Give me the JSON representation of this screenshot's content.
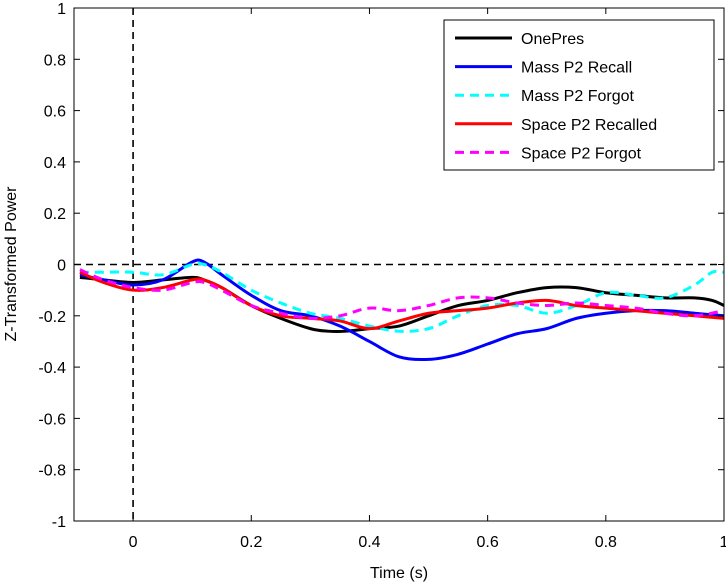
{
  "chart_data": {
    "type": "line",
    "title": "",
    "xlabel": "Time (s)",
    "ylabel": "Z-Transformed Power",
    "xlim": [
      -0.1,
      1.0
    ],
    "ylim": [
      -1,
      1
    ],
    "xticks": [
      0,
      0.2,
      0.4,
      0.6,
      0.8,
      1
    ],
    "xtick_labels": [
      "0",
      "0.2",
      "0.4",
      "0.6",
      "0.8",
      "1"
    ],
    "yticks": [
      -1,
      -0.8,
      -0.6,
      -0.4,
      -0.2,
      0,
      0.2,
      0.4,
      0.6,
      0.8,
      1
    ],
    "ytick_labels": [
      "-1",
      "-0.8",
      "-0.6",
      "-0.4",
      "-0.2",
      "0",
      "0.2",
      "0.4",
      "0.6",
      "0.8",
      "1"
    ],
    "grid": false,
    "legend_position": "top-right",
    "reference_lines": [
      {
        "axis": "y",
        "value": 0,
        "style": "dashed",
        "color": "#000000"
      },
      {
        "axis": "x",
        "value": 0,
        "style": "dashed",
        "color": "#000000"
      }
    ],
    "series": [
      {
        "name": "OnePres",
        "color": "#000000",
        "dash": "solid",
        "points": [
          [
            -0.09,
            -0.05
          ],
          [
            -0.05,
            -0.06
          ],
          [
            0.0,
            -0.07
          ],
          [
            0.05,
            -0.06
          ],
          [
            0.1,
            -0.05
          ],
          [
            0.12,
            -0.06
          ],
          [
            0.15,
            -0.09
          ],
          [
            0.2,
            -0.16
          ],
          [
            0.25,
            -0.21
          ],
          [
            0.3,
            -0.25
          ],
          [
            0.33,
            -0.26
          ],
          [
            0.36,
            -0.26
          ],
          [
            0.4,
            -0.25
          ],
          [
            0.45,
            -0.24
          ],
          [
            0.5,
            -0.2
          ],
          [
            0.55,
            -0.16
          ],
          [
            0.6,
            -0.14
          ],
          [
            0.65,
            -0.11
          ],
          [
            0.7,
            -0.09
          ],
          [
            0.75,
            -0.09
          ],
          [
            0.8,
            -0.11
          ],
          [
            0.85,
            -0.12
          ],
          [
            0.9,
            -0.13
          ],
          [
            0.95,
            -0.13
          ],
          [
            0.98,
            -0.14
          ],
          [
            1.0,
            -0.16
          ]
        ]
      },
      {
        "name": "Mass P2 Recall",
        "color": "#0000ff",
        "dash": "solid",
        "points": [
          [
            -0.09,
            -0.04
          ],
          [
            -0.05,
            -0.06
          ],
          [
            0.0,
            -0.08
          ],
          [
            0.05,
            -0.06
          ],
          [
            0.1,
            0.01
          ],
          [
            0.12,
            0.01
          ],
          [
            0.15,
            -0.04
          ],
          [
            0.2,
            -0.12
          ],
          [
            0.25,
            -0.18
          ],
          [
            0.3,
            -0.2
          ],
          [
            0.35,
            -0.24
          ],
          [
            0.4,
            -0.3
          ],
          [
            0.45,
            -0.36
          ],
          [
            0.5,
            -0.37
          ],
          [
            0.55,
            -0.35
          ],
          [
            0.6,
            -0.31
          ],
          [
            0.65,
            -0.27
          ],
          [
            0.7,
            -0.25
          ],
          [
            0.75,
            -0.21
          ],
          [
            0.8,
            -0.19
          ],
          [
            0.85,
            -0.18
          ],
          [
            0.9,
            -0.18
          ],
          [
            0.95,
            -0.19
          ],
          [
            1.0,
            -0.2
          ]
        ]
      },
      {
        "name": "Mass P2 Forgot",
        "color": "#00ffff",
        "dash": "dashed",
        "points": [
          [
            -0.09,
            -0.03
          ],
          [
            -0.05,
            -0.03
          ],
          [
            0.0,
            -0.03
          ],
          [
            0.05,
            -0.04
          ],
          [
            0.1,
            0.0
          ],
          [
            0.12,
            0.0
          ],
          [
            0.15,
            -0.03
          ],
          [
            0.2,
            -0.1
          ],
          [
            0.25,
            -0.15
          ],
          [
            0.3,
            -0.19
          ],
          [
            0.35,
            -0.21
          ],
          [
            0.4,
            -0.24
          ],
          [
            0.45,
            -0.26
          ],
          [
            0.5,
            -0.25
          ],
          [
            0.55,
            -0.2
          ],
          [
            0.6,
            -0.16
          ],
          [
            0.65,
            -0.16
          ],
          [
            0.7,
            -0.19
          ],
          [
            0.75,
            -0.16
          ],
          [
            0.8,
            -0.11
          ],
          [
            0.85,
            -0.12
          ],
          [
            0.9,
            -0.13
          ],
          [
            0.95,
            -0.08
          ],
          [
            0.98,
            -0.03
          ],
          [
            1.0,
            -0.03
          ]
        ]
      },
      {
        "name": "Space P2 Recalled",
        "color": "#ff0000",
        "dash": "solid",
        "points": [
          [
            -0.09,
            -0.03
          ],
          [
            -0.05,
            -0.07
          ],
          [
            0.0,
            -0.1
          ],
          [
            0.05,
            -0.09
          ],
          [
            0.1,
            -0.06
          ],
          [
            0.12,
            -0.06
          ],
          [
            0.15,
            -0.09
          ],
          [
            0.2,
            -0.16
          ],
          [
            0.25,
            -0.2
          ],
          [
            0.3,
            -0.21
          ],
          [
            0.35,
            -0.22
          ],
          [
            0.4,
            -0.25
          ],
          [
            0.45,
            -0.22
          ],
          [
            0.5,
            -0.19
          ],
          [
            0.55,
            -0.18
          ],
          [
            0.6,
            -0.17
          ],
          [
            0.65,
            -0.15
          ],
          [
            0.7,
            -0.14
          ],
          [
            0.75,
            -0.16
          ],
          [
            0.8,
            -0.17
          ],
          [
            0.85,
            -0.18
          ],
          [
            0.9,
            -0.19
          ],
          [
            0.95,
            -0.2
          ],
          [
            1.0,
            -0.21
          ]
        ]
      },
      {
        "name": "Space P2 Forgot",
        "color": "#ff00ff",
        "dash": "dashed",
        "points": [
          [
            -0.09,
            -0.02
          ],
          [
            -0.05,
            -0.06
          ],
          [
            0.0,
            -0.09
          ],
          [
            0.05,
            -0.1
          ],
          [
            0.1,
            -0.07
          ],
          [
            0.12,
            -0.07
          ],
          [
            0.15,
            -0.1
          ],
          [
            0.2,
            -0.16
          ],
          [
            0.25,
            -0.19
          ],
          [
            0.3,
            -0.21
          ],
          [
            0.35,
            -0.2
          ],
          [
            0.4,
            -0.17
          ],
          [
            0.45,
            -0.18
          ],
          [
            0.5,
            -0.16
          ],
          [
            0.55,
            -0.13
          ],
          [
            0.6,
            -0.13
          ],
          [
            0.65,
            -0.15
          ],
          [
            0.7,
            -0.16
          ],
          [
            0.75,
            -0.15
          ],
          [
            0.8,
            -0.16
          ],
          [
            0.85,
            -0.17
          ],
          [
            0.9,
            -0.19
          ],
          [
            0.95,
            -0.2
          ],
          [
            1.0,
            -0.18
          ]
        ]
      }
    ]
  }
}
